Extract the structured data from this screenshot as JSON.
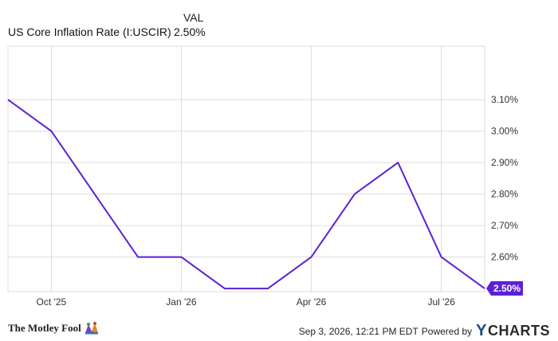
{
  "header": {
    "column_label": "VAL",
    "series_name": "US Core Inflation Rate (I:USCIR)",
    "series_value": "2.50%"
  },
  "footer": {
    "logo_text": "The Motley Fool",
    "timestamp": "Sep 3, 2026, 12:21 PM EDT",
    "powered_by": "Powered by",
    "brand_y": "Y",
    "brand_rest": "CHARTS"
  },
  "colors": {
    "line": "#5b21d6",
    "grid": "#dcdcdc",
    "badge": "#5b21d6"
  },
  "chart_data": {
    "type": "line",
    "title": "",
    "xlabel": "",
    "ylabel": "",
    "x_tick_labels": [
      "Oct '25",
      "Jan '26",
      "Apr '26",
      "Jul '26"
    ],
    "y_tick_labels": [
      "2.60%",
      "2.70%",
      "2.80%",
      "2.90%",
      "3.00%",
      "3.10%"
    ],
    "y_ticks": [
      2.6,
      2.7,
      2.8,
      2.9,
      3.0,
      3.1
    ],
    "ylim": [
      2.49,
      3.27
    ],
    "x_range": [
      "2025-09",
      "2026-08"
    ],
    "grid": true,
    "last_value_label": "2.50%",
    "series": [
      {
        "x": [
          "2025-09",
          "2025-10",
          "2025-11",
          "2025-12",
          "2026-01",
          "2026-02",
          "2026-03",
          "2026-04",
          "2026-05",
          "2026-06",
          "2026-07",
          "2026-08"
        ],
        "values": [
          3.1,
          3.0,
          2.8,
          2.6,
          2.6,
          2.5,
          2.5,
          2.6,
          2.8,
          2.9,
          2.6,
          2.5
        ]
      }
    ]
  }
}
